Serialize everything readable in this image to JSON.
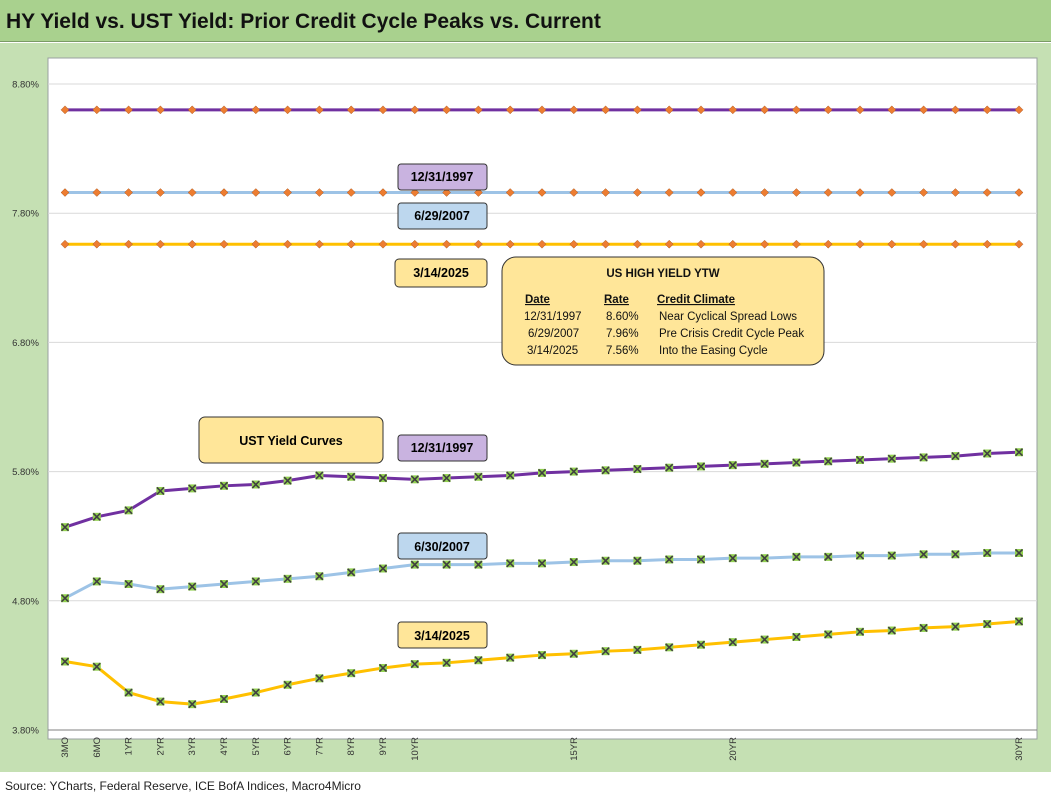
{
  "title": "HY Yield vs. UST Yield: Prior Credit Cycle Peaks vs. Current",
  "source": "Source: YCharts, Federal Reserve, ICE BofA Indices, Macro4Micro",
  "colors": {
    "y1997": "#7030a0",
    "y2007": "#9dc3e6",
    "y2025": "#ffc000",
    "hy_marker": "#ed7d31",
    "ust_marker": "#92d050",
    "box_1997": "#c9b3e0",
    "box_2007": "#bdd7ee",
    "box_2025": "#ffe699"
  },
  "labels": {
    "hy_1997": "12/31/1997",
    "hy_2007": "6/29/2007",
    "hy_2025": "3/14/2025",
    "ust_title": "UST  Yield Curves",
    "ust_1997": "12/31/1997",
    "ust_2007": "6/30/2007",
    "ust_2025": "3/14/2025"
  },
  "info_box": {
    "title": "US HIGH YIELD YTW",
    "headers": [
      "Date",
      "Rate",
      "Credit Climate"
    ],
    "rows": [
      [
        "12/31/1997",
        "8.60%",
        "Near Cyclical Spread Lows"
      ],
      [
        "6/29/2007",
        "7.96%",
        "Pre Crisis Credit Cycle Peak"
      ],
      [
        "3/14/2025",
        "7.56%",
        "Into the Easing Cycle"
      ]
    ]
  },
  "chart_data": {
    "type": "line",
    "x_count": 31,
    "x_tick_labels": [
      "3MO",
      "6MO",
      "1YR",
      "2YR",
      "3YR",
      "4YR",
      "5YR",
      "6YR",
      "7YR",
      "8YR",
      "9YR",
      "10YR",
      "",
      "",
      "",
      "",
      "15YR",
      "",
      "",
      "",
      "",
      "20YR",
      "",
      "",
      "",
      "",
      "",
      "",
      "",
      "",
      "30YR"
    ],
    "y_tick_labels": [
      "3.80%",
      "4.80%",
      "5.80%",
      "6.80%",
      "7.80%",
      "8.80%"
    ],
    "ylim": [
      3.8,
      8.8
    ],
    "grid": true,
    "series": [
      {
        "name": "12/31/1997",
        "group": "hy",
        "values": [
          8.6,
          8.6,
          8.6,
          8.6,
          8.6,
          8.6,
          8.6,
          8.6,
          8.6,
          8.6,
          8.6,
          8.6,
          8.6,
          8.6,
          8.6,
          8.6,
          8.6,
          8.6,
          8.6,
          8.6,
          8.6,
          8.6,
          8.6,
          8.6,
          8.6,
          8.6,
          8.6,
          8.6,
          8.6,
          8.6,
          8.6
        ]
      },
      {
        "name": "6/29/2007",
        "group": "hy",
        "values": [
          7.96,
          7.96,
          7.96,
          7.96,
          7.96,
          7.96,
          7.96,
          7.96,
          7.96,
          7.96,
          7.96,
          7.96,
          7.96,
          7.96,
          7.96,
          7.96,
          7.96,
          7.96,
          7.96,
          7.96,
          7.96,
          7.96,
          7.96,
          7.96,
          7.96,
          7.96,
          7.96,
          7.96,
          7.96,
          7.96,
          7.96
        ]
      },
      {
        "name": "3/14/2025",
        "group": "hy",
        "values": [
          7.56,
          7.56,
          7.56,
          7.56,
          7.56,
          7.56,
          7.56,
          7.56,
          7.56,
          7.56,
          7.56,
          7.56,
          7.56,
          7.56,
          7.56,
          7.56,
          7.56,
          7.56,
          7.56,
          7.56,
          7.56,
          7.56,
          7.56,
          7.56,
          7.56,
          7.56,
          7.56,
          7.56,
          7.56,
          7.56,
          7.56
        ]
      },
      {
        "name": "12/31/1997",
        "group": "ust",
        "values": [
          5.37,
          5.45,
          5.5,
          5.65,
          5.67,
          5.69,
          5.7,
          5.73,
          5.77,
          5.76,
          5.75,
          5.74,
          5.75,
          5.76,
          5.77,
          5.79,
          5.8,
          5.81,
          5.82,
          5.83,
          5.84,
          5.85,
          5.86,
          5.87,
          5.88,
          5.89,
          5.9,
          5.91,
          5.92,
          5.94,
          5.95
        ]
      },
      {
        "name": "6/30/2007",
        "group": "ust",
        "values": [
          4.82,
          4.95,
          4.93,
          4.89,
          4.91,
          4.93,
          4.95,
          4.97,
          4.99,
          5.02,
          5.05,
          5.08,
          5.08,
          5.08,
          5.09,
          5.09,
          5.1,
          5.11,
          5.11,
          5.12,
          5.12,
          5.13,
          5.13,
          5.14,
          5.14,
          5.15,
          5.15,
          5.16,
          5.16,
          5.17,
          5.17
        ]
      },
      {
        "name": "3/14/2025",
        "group": "ust",
        "values": [
          4.33,
          4.29,
          4.09,
          4.02,
          4.0,
          4.04,
          4.09,
          4.15,
          4.2,
          4.24,
          4.28,
          4.31,
          4.32,
          4.34,
          4.36,
          4.38,
          4.39,
          4.41,
          4.42,
          4.44,
          4.46,
          4.48,
          4.5,
          4.52,
          4.54,
          4.56,
          4.57,
          4.59,
          4.6,
          4.62,
          4.64
        ]
      }
    ]
  }
}
